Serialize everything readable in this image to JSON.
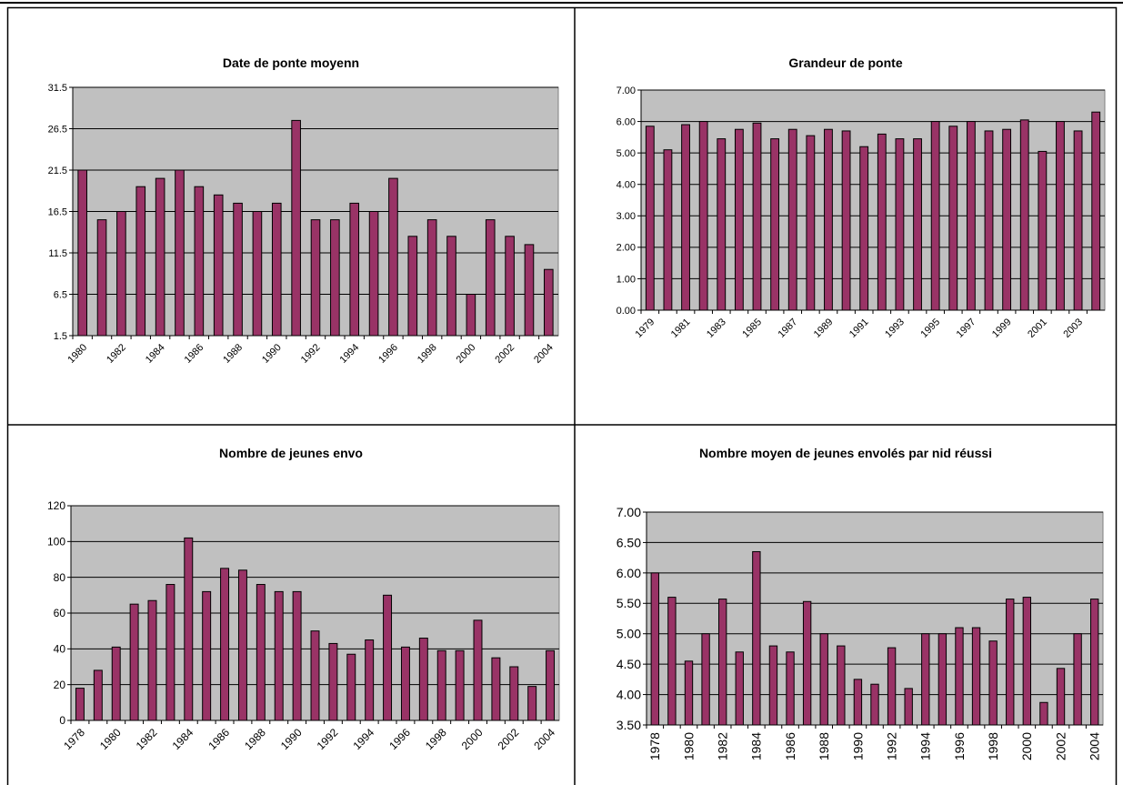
{
  "chart_data": [
    {
      "type": "bar",
      "title": "Date de ponte moyenn",
      "color": "#993366",
      "categories": [
        "1980",
        null,
        "1982",
        null,
        "1984",
        null,
        "1986",
        null,
        "1988",
        null,
        "1990",
        null,
        "1992",
        null,
        "1994",
        null,
        "1996",
        null,
        "1998",
        null,
        "2000",
        null,
        "2002",
        null,
        "2004"
      ],
      "values": [
        21.5,
        15.5,
        16.5,
        19.5,
        20.5,
        21.5,
        19.5,
        18.5,
        17.5,
        16.5,
        17.5,
        27.5,
        15.5,
        15.5,
        17.5,
        16.5,
        20.5,
        13.5,
        15.5,
        13.5,
        6.5,
        15.5,
        13.5,
        12.5,
        9.5
      ],
      "ylim": [
        1.5,
        31.5
      ],
      "yticks": [
        1.5,
        6.5,
        11.5,
        16.5,
        21.5,
        26.5,
        31.5
      ],
      "grid": true
    },
    {
      "type": "bar",
      "title": "Grandeur de ponte",
      "color": "#993366",
      "categories": [
        "1979",
        null,
        "1981",
        null,
        "1983",
        null,
        "1985",
        null,
        "1987",
        null,
        "1989",
        null,
        "1991",
        null,
        "1993",
        null,
        "1995",
        null,
        "1997",
        null,
        "1999",
        null,
        "2001",
        null,
        "2003",
        null
      ],
      "values": [
        5.85,
        5.1,
        5.9,
        6.0,
        5.45,
        5.75,
        5.95,
        5.45,
        5.75,
        5.55,
        5.75,
        5.7,
        5.2,
        5.6,
        5.45,
        5.45,
        6.0,
        5.85,
        6.0,
        5.7,
        5.75,
        6.05,
        5.05,
        6.0,
        5.7,
        6.3
      ],
      "ylim": [
        0,
        7
      ],
      "yticks": [
        {
          "value": 0,
          "label": "0.00"
        },
        {
          "value": 1,
          "label": "1.00"
        },
        {
          "value": 2,
          "label": "2.00"
        },
        {
          "value": 3,
          "label": "3.00"
        },
        {
          "value": 4,
          "label": "4.00"
        },
        {
          "value": 5,
          "label": "5.00"
        },
        {
          "value": 6,
          "label": "6.00"
        },
        {
          "value": 7,
          "label": "7.00"
        }
      ],
      "grid": true
    },
    {
      "type": "bar",
      "title": "Nombre de jeunes envo",
      "color": "#993366",
      "categories": [
        "1978",
        null,
        "1980",
        null,
        "1982",
        null,
        "1984",
        null,
        "1986",
        null,
        "1988",
        null,
        "1990",
        null,
        "1992",
        null,
        "1994",
        null,
        "1996",
        null,
        "1998",
        null,
        "2000",
        null,
        "2002",
        null,
        "2004"
      ],
      "values": [
        18,
        28,
        41,
        65,
        67,
        76,
        102,
        72,
        85,
        84,
        76,
        72,
        72,
        50,
        43,
        37,
        45,
        70,
        41,
        46,
        39,
        39,
        56,
        35,
        30,
        19,
        39
      ],
      "ylim": [
        0,
        120
      ],
      "yticks": [
        0,
        20,
        40,
        60,
        80,
        100,
        120
      ],
      "grid": true
    },
    {
      "type": "bar",
      "title": "Nombre moyen de jeunes envolés par nid réussi",
      "color": "#993366",
      "categories": [
        "1978",
        null,
        "1980",
        null,
        "1982",
        null,
        "1984",
        null,
        "1986",
        null,
        "1988",
        null,
        "1990",
        null,
        "1992",
        null,
        "1994",
        null,
        "1996",
        null,
        "1998",
        null,
        "2000",
        null,
        "2002",
        null,
        "2004"
      ],
      "values": [
        6.0,
        5.6,
        4.55,
        5.0,
        5.57,
        4.7,
        6.35,
        4.8,
        4.7,
        5.53,
        5.0,
        4.8,
        4.25,
        4.17,
        4.77,
        4.1,
        5.0,
        5.0,
        5.1,
        5.1,
        4.88,
        5.57,
        5.6,
        3.87,
        4.43,
        5.0,
        5.57
      ],
      "ylim": [
        3.5,
        7
      ],
      "yticks": [
        {
          "value": 3.5,
          "label": "3.50"
        },
        {
          "value": 4,
          "label": "4.00"
        },
        {
          "value": 4.5,
          "label": "4.50"
        },
        {
          "value": 5,
          "label": "5.00"
        },
        {
          "value": 5.5,
          "label": "5.50"
        },
        {
          "value": 6,
          "label": "6.00"
        },
        {
          "value": 6.5,
          "label": "6.50"
        },
        {
          "value": 7,
          "label": "7.00"
        }
      ],
      "grid": true
    }
  ]
}
